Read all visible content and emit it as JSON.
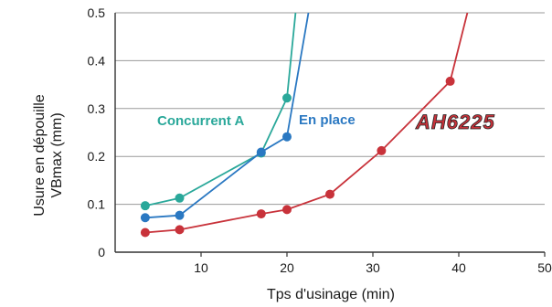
{
  "chart_data": {
    "type": "line",
    "xlabel": "Tps d'usinage (min)",
    "ylabel": [
      "Usure en dépouille",
      "VBmax (mm)"
    ],
    "xlim": [
      0,
      50
    ],
    "ylim": [
      0,
      0.5
    ],
    "xticks": [
      10,
      20,
      30,
      40,
      50
    ],
    "yticks": [
      0,
      0.1,
      0.2,
      0.3,
      0.4,
      0.5
    ],
    "ytick_labels": [
      "0",
      "0.1",
      "0.2",
      "0.3",
      "0.4",
      "0.5"
    ],
    "grid": "horizontal",
    "series": [
      {
        "name": "Concurrent A",
        "color": "#2aa89a",
        "points": [
          [
            3.5,
            0.097
          ],
          [
            7.5,
            0.113
          ],
          [
            17.0,
            0.207
          ],
          [
            20.0,
            0.322
          ]
        ],
        "extends_to": [
          21.0,
          0.5
        ]
      },
      {
        "name": "En place",
        "color": "#2a78c2",
        "points": [
          [
            3.5,
            0.072
          ],
          [
            7.5,
            0.077
          ],
          [
            17.0,
            0.209
          ],
          [
            20.0,
            0.241
          ]
        ],
        "extends_to": [
          22.5,
          0.5
        ]
      },
      {
        "name": "AH6225",
        "color": "#c8323a",
        "points": [
          [
            3.5,
            0.041
          ],
          [
            7.5,
            0.047
          ],
          [
            17.0,
            0.08
          ],
          [
            20.0,
            0.089
          ],
          [
            25.0,
            0.121
          ],
          [
            31.0,
            0.212
          ],
          [
            39.0,
            0.357
          ]
        ],
        "extends_to": [
          41.0,
          0.5
        ]
      }
    ]
  }
}
